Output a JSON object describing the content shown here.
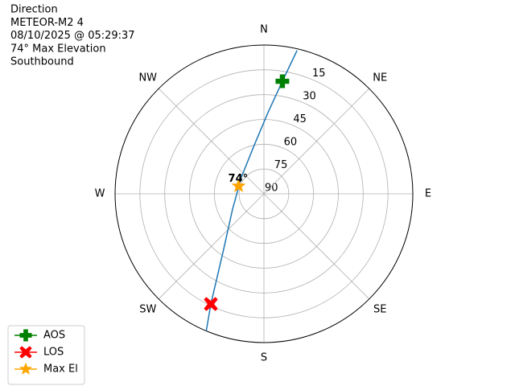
{
  "chart_data": {
    "type": "polar",
    "title_lines": [
      "Direction",
      "METEOR-M2 4",
      "08/10/2025 @ 05:29:37",
      "74° Max Elevation",
      "Southbound"
    ],
    "rlim": [
      90,
      0
    ],
    "rticks": [
      15,
      30,
      45,
      60,
      75,
      90
    ],
    "thetaticks": [
      {
        "value": 0,
        "label": "N"
      },
      {
        "value": 45,
        "label": "NE"
      },
      {
        "value": 90,
        "label": "E"
      },
      {
        "value": 135,
        "label": "SE"
      },
      {
        "value": 180,
        "label": "S"
      },
      {
        "value": 225,
        "label": "SW"
      },
      {
        "value": 270,
        "label": "W"
      },
      {
        "value": 315,
        "label": "NW"
      }
    ],
    "grid": true,
    "legend": "lower left",
    "series": [
      {
        "color": "#1f77b4",
        "marker": "none",
        "x": [
          13,
          9.3,
          2.8,
          349,
          307,
          244,
          216,
          205.7,
          202.8
        ],
        "values": [
          1,
          21,
          40.9,
          59.8,
          73,
          68.9,
          48.6,
          16,
          0
        ]
      },
      {
        "name": "AOS",
        "color": "#008000",
        "marker": "plus",
        "x": [
          9.3
        ],
        "values": [
          21
        ]
      },
      {
        "name": "LOS",
        "color": "#ff0000",
        "marker": "x",
        "x": [
          205.7
        ],
        "values": [
          16
        ]
      },
      {
        "name": "Max El",
        "color": "#ffa500",
        "marker": "star",
        "x": [
          287
        ],
        "values": [
          74
        ]
      }
    ],
    "annotations": [
      {
        "text": "74°"
      }
    ]
  }
}
